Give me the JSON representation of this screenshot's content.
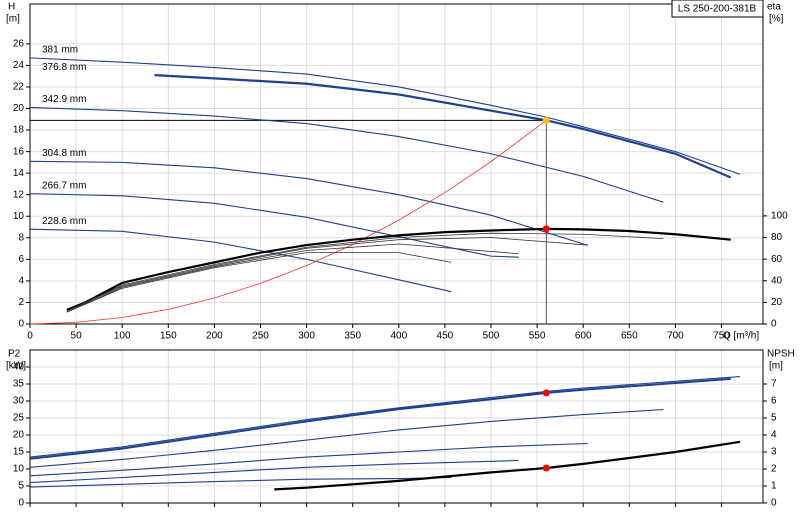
{
  "chart_data": [
    {
      "type": "line",
      "label_box": "LS 250-200-381B",
      "ylabel": "H",
      "yunit": "[m]",
      "y2label": "eta",
      "y2unit": "[%]",
      "xlabel": "Q [m³/h]",
      "xlim": [
        0,
        795
      ],
      "xticks": [
        0,
        50,
        100,
        150,
        200,
        250,
        300,
        350,
        400,
        450,
        500,
        550,
        600,
        650,
        700,
        750
      ],
      "ylim": [
        0,
        29.7
      ],
      "yticks": [
        0,
        2,
        4,
        6,
        8,
        10,
        12,
        14,
        16,
        18,
        20,
        22,
        24,
        26
      ],
      "y2lim": [
        0,
        296
      ],
      "y2ticks": [
        0,
        20,
        40,
        60,
        80,
        100
      ],
      "grid": true,
      "series": [
        {
          "name": "381 mm",
          "color": "#1f3f8f",
          "x": [
            0,
            100,
            200,
            300,
            400,
            500,
            560,
            600,
            700,
            770
          ],
          "values": [
            24.7,
            24.3,
            23.8,
            23.2,
            22.0,
            20.3,
            19.2,
            18.3,
            16.0,
            13.9
          ]
        },
        {
          "name": "376.8 mm",
          "color": "#1f3f8f",
          "line_width": 2.2,
          "x": [
            135,
            200,
            300,
            400,
            500,
            560,
            600,
            700,
            760
          ],
          "values": [
            23.1,
            22.8,
            22.3,
            21.3,
            19.8,
            18.9,
            18.1,
            15.8,
            13.6
          ]
        },
        {
          "name": "342.9 mm",
          "color": "#1f3f8f",
          "x": [
            0,
            100,
            200,
            300,
            400,
            500,
            600,
            687
          ],
          "values": [
            20.1,
            19.8,
            19.3,
            18.6,
            17.4,
            15.8,
            13.7,
            11.3
          ]
        },
        {
          "name": "304.8 mm",
          "color": "#1f3f8f",
          "x": [
            0,
            100,
            200,
            300,
            400,
            500,
            605
          ],
          "values": [
            15.1,
            15.0,
            14.5,
            13.5,
            12.0,
            10.1,
            7.3
          ]
        },
        {
          "name": "266.7 mm",
          "color": "#1f3f8f",
          "x": [
            0,
            100,
            200,
            300,
            400,
            500,
            530
          ],
          "values": [
            12.1,
            11.9,
            11.2,
            9.9,
            8.1,
            6.3,
            6.2
          ]
        },
        {
          "name": "228.6 mm",
          "color": "#1f3f8f",
          "x": [
            0,
            100,
            200,
            300,
            400,
            457
          ],
          "values": [
            8.8,
            8.6,
            7.6,
            6.0,
            4.1,
            3.0
          ]
        },
        {
          "color": "#ff2a2a",
          "line_width": 0.8,
          "x": [
            0,
            50,
            100,
            150,
            200,
            250,
            300,
            350,
            400,
            450,
            500,
            560
          ],
          "values": [
            0,
            0.15,
            0.6,
            1.36,
            2.41,
            3.77,
            5.42,
            7.38,
            9.64,
            12.2,
            15.07,
            18.9
          ]
        },
        {
          "axis": "y2",
          "color": "#000000",
          "line_width": 2.2,
          "x": [
            40,
            60,
            100,
            150,
            200,
            250,
            300,
            350,
            400,
            450,
            500,
            560,
            600,
            650,
            700,
            760
          ],
          "values": [
            13,
            20,
            38,
            48,
            57,
            66,
            73,
            78,
            82,
            85,
            86.5,
            88,
            87.5,
            86,
            83,
            78
          ]
        },
        {
          "axis": "y2",
          "color": "#333333",
          "line_width": 0.8,
          "x": [
            40,
            100,
            200,
            300,
            400,
            500,
            600,
            687
          ],
          "values": [
            12,
            36,
            55,
            71,
            80,
            84,
            83,
            79
          ]
        },
        {
          "axis": "y2",
          "color": "#333333",
          "line_width": 0.8,
          "x": [
            40,
            100,
            200,
            300,
            400,
            500,
            605
          ],
          "values": [
            12,
            35,
            54,
            70,
            78,
            80,
            73
          ]
        },
        {
          "axis": "y2",
          "color": "#333333",
          "line_width": 0.8,
          "x": [
            40,
            100,
            200,
            300,
            400,
            530
          ],
          "values": [
            11,
            34,
            53,
            68,
            74,
            65
          ]
        },
        {
          "axis": "y2",
          "color": "#333333",
          "line_width": 0.8,
          "x": [
            40,
            100,
            200,
            300,
            400,
            457
          ],
          "values": [
            11,
            33,
            52,
            66,
            66,
            57
          ]
        }
      ],
      "points": [
        {
          "x": 560,
          "y": 18.9,
          "color": "#f5c400",
          "guides": true
        },
        {
          "x": 560,
          "y": 88,
          "axis": "y2",
          "color": "#ff0000"
        }
      ]
    },
    {
      "type": "line",
      "ylabel": "P2",
      "yunit": "[kW]",
      "y2label": "NPSH",
      "y2unit": "[m]",
      "xlim": [
        0,
        795
      ],
      "ylim": [
        0,
        45
      ],
      "yticks": [
        0,
        5,
        10,
        15,
        20,
        25,
        30,
        35,
        40
      ],
      "y2lim": [
        0,
        9
      ],
      "y2ticks": [
        0,
        1,
        2,
        3,
        4,
        5,
        6,
        7
      ],
      "grid": true,
      "series": [
        {
          "color": "#1f3f8f",
          "x": [
            0,
            100,
            200,
            300,
            400,
            500,
            560,
            600,
            700,
            770
          ],
          "values": [
            13.5,
            16.5,
            20.5,
            24.5,
            28,
            31,
            32.8,
            33.8,
            35.8,
            37.2
          ]
        },
        {
          "color": "#1f3f8f",
          "line_width": 2,
          "x": [
            0,
            100,
            200,
            300,
            400,
            500,
            560,
            600,
            700,
            760
          ],
          "values": [
            13,
            16,
            20,
            24,
            27.6,
            30.5,
            32.4,
            33.3,
            35.3,
            36.5
          ]
        },
        {
          "color": "#1f3f8f",
          "x": [
            0,
            100,
            200,
            300,
            400,
            500,
            600,
            687
          ],
          "values": [
            10.5,
            12.8,
            15.5,
            18.5,
            21.5,
            24,
            26,
            27.5
          ]
        },
        {
          "color": "#1f3f8f",
          "x": [
            0,
            100,
            200,
            300,
            400,
            500,
            605
          ],
          "values": [
            8,
            9.6,
            11.5,
            13.5,
            15,
            16.5,
            17.5
          ]
        },
        {
          "color": "#1f3f8f",
          "x": [
            0,
            100,
            200,
            300,
            400,
            530
          ],
          "values": [
            6,
            7.5,
            9,
            10.5,
            11.5,
            12.5
          ]
        },
        {
          "color": "#1f3f8f",
          "x": [
            0,
            100,
            200,
            300,
            400,
            457
          ],
          "values": [
            4.7,
            5.5,
            6.3,
            7,
            7.2,
            7.5
          ]
        },
        {
          "axis": "y2",
          "color": "#000000",
          "line_width": 2.2,
          "x": [
            265,
            300,
            400,
            500,
            560,
            600,
            700,
            770
          ],
          "values": [
            0.8,
            0.9,
            1.3,
            1.8,
            2.06,
            2.3,
            3.0,
            3.6
          ]
        }
      ],
      "points": [
        {
          "x": 560,
          "y": 32.4,
          "color": "#ff0000"
        },
        {
          "x": 560,
          "y": 2.06,
          "axis": "y2",
          "color": "#ff0000"
        }
      ]
    }
  ]
}
